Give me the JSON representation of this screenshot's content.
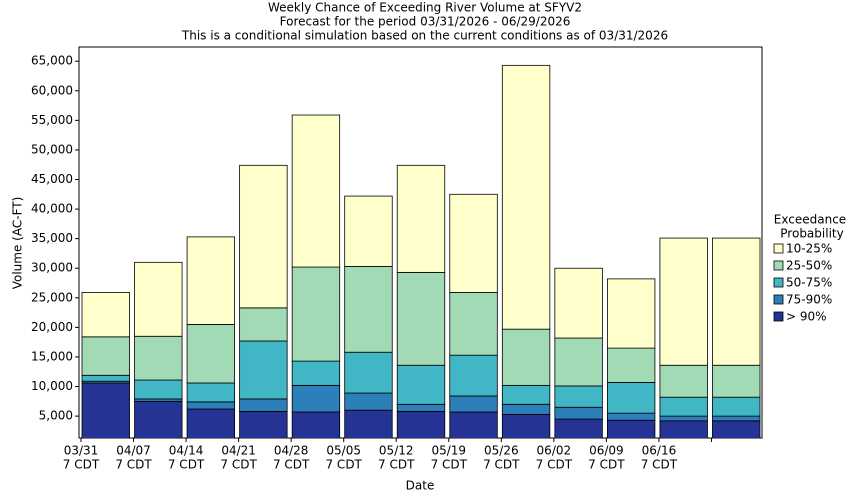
{
  "chart_data": {
    "type": "stacked_bar",
    "title": [
      "Weekly Chance of Exceeding River Volume at SFYV2",
      "Forecast for the period 03/31/2026 - 06/29/2026",
      "This is a conditional simulation based on the current conditions as of 03/31/2026"
    ],
    "x_label": "Date",
    "y_label": "Volume (AC-FT)",
    "categories": [
      "03/31",
      "04/07",
      "04/14",
      "04/21",
      "04/28",
      "05/05",
      "05/12",
      "05/19",
      "05/26",
      "06/02",
      "06/09",
      "06/16",
      null
    ],
    "category_sublabel": "7 CDT",
    "legend_title": [
      "Exceedance",
      "Probability"
    ],
    "series": [
      {
        "name": "> 90%",
        "color": "#253494",
        "values": [
          10600,
          7500,
          6200,
          5800,
          5700,
          6000,
          5800,
          5700,
          5300,
          4500,
          4300,
          4200,
          4200
        ]
      },
      {
        "name": "75-90%",
        "color": "#2c7fb8",
        "values": [
          300,
          400,
          1200,
          2100,
          4500,
          2900,
          1200,
          2700,
          1700,
          2000,
          1200,
          800,
          800
        ]
      },
      {
        "name": "50-75%",
        "color": "#41b6c4",
        "values": [
          1000,
          3200,
          3200,
          9800,
          4100,
          6900,
          6600,
          6900,
          3200,
          3600,
          5200,
          3200,
          3200
        ]
      },
      {
        "name": "25-50%",
        "color": "#a1dab4",
        "values": [
          6500,
          7400,
          9900,
          5600,
          15900,
          14500,
          15700,
          10600,
          9500,
          8100,
          5800,
          5400,
          5400
        ]
      },
      {
        "name": "10-25%",
        "color": "#ffffcc",
        "values": [
          7500,
          12500,
          14800,
          24100,
          25700,
          11900,
          18100,
          16600,
          44600,
          11800,
          11700,
          21500,
          21500
        ]
      }
    ],
    "ylim": [
      1300,
      67400
    ],
    "yticks": [
      {
        "value": 5000,
        "label": "5,000"
      },
      {
        "value": 10000,
        "label": "10,000"
      },
      {
        "value": 15000,
        "label": "15,000"
      },
      {
        "value": 20000,
        "label": "20,000"
      },
      {
        "value": 25000,
        "label": "25,000"
      },
      {
        "value": 30000,
        "label": "30,000"
      },
      {
        "value": 35000,
        "label": "35,000"
      },
      {
        "value": 40000,
        "label": "40,000"
      },
      {
        "value": 45000,
        "label": "45,000"
      },
      {
        "value": 50000,
        "label": "50,000"
      },
      {
        "value": 55000,
        "label": "55,000"
      },
      {
        "value": 60000,
        "label": "60,000"
      },
      {
        "value": 65000,
        "label": "65,000"
      }
    ],
    "legend_position": "right"
  }
}
